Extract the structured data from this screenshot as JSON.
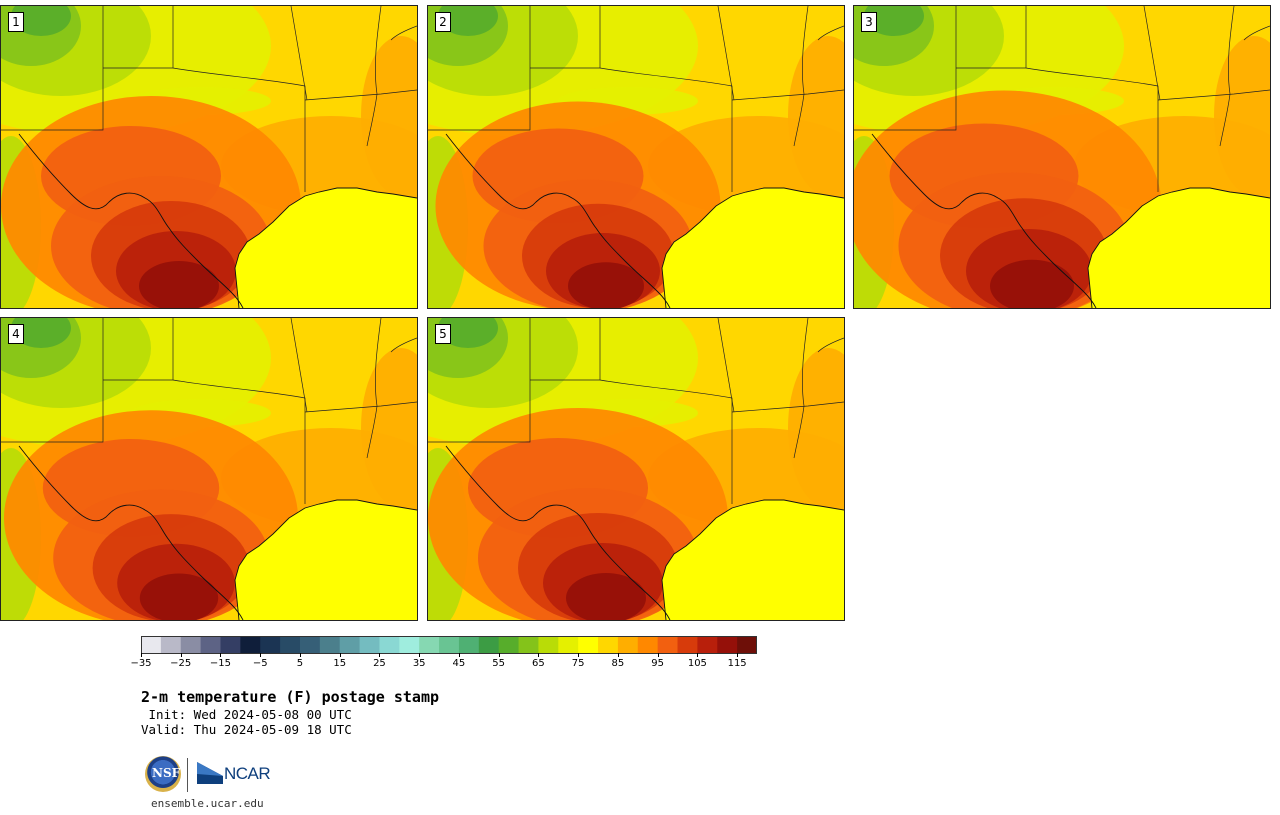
{
  "panels": [
    {
      "label": "1",
      "heat": 1.0
    },
    {
      "label": "2",
      "heat": 0.95
    },
    {
      "label": "3",
      "heat": 1.05
    },
    {
      "label": "4",
      "heat": 0.98
    },
    {
      "label": "5",
      "heat": 1.0
    }
  ],
  "colorbar": {
    "colors": [
      "#e8e8ee",
      "#b9b9c8",
      "#8a8da4",
      "#5d6385",
      "#343e64",
      "#0f1e3a",
      "#1b3453",
      "#284b66",
      "#365f77",
      "#4b7f8c",
      "#5f9ea6",
      "#74bcc0",
      "#8ad8d3",
      "#9fedde",
      "#86d8b2",
      "#69c493",
      "#4fb073",
      "#3c9c44",
      "#57ad2b",
      "#84c31a",
      "#b9dc07",
      "#e5f000",
      "#ffff00",
      "#ffd700",
      "#ffae00",
      "#ff8800",
      "#f26010",
      "#d73b0b",
      "#b81f0b",
      "#951009",
      "#6e0f08"
    ],
    "tick_labels": [
      "−35",
      "−25",
      "−15",
      "−5",
      "5",
      "15",
      "25",
      "35",
      "45",
      "55",
      "65",
      "75",
      "85",
      "95",
      "105",
      "115"
    ]
  },
  "title": "2-m temperature (F) postage stamp",
  "init_text": " Init: Wed 2024-05-08 00 UTC",
  "valid_text": "Valid: Thu 2024-05-09 18 UTC",
  "logos": {
    "nsf": "NSF",
    "ncar": "NCAR"
  },
  "website": "ensemble.ucar.edu"
}
